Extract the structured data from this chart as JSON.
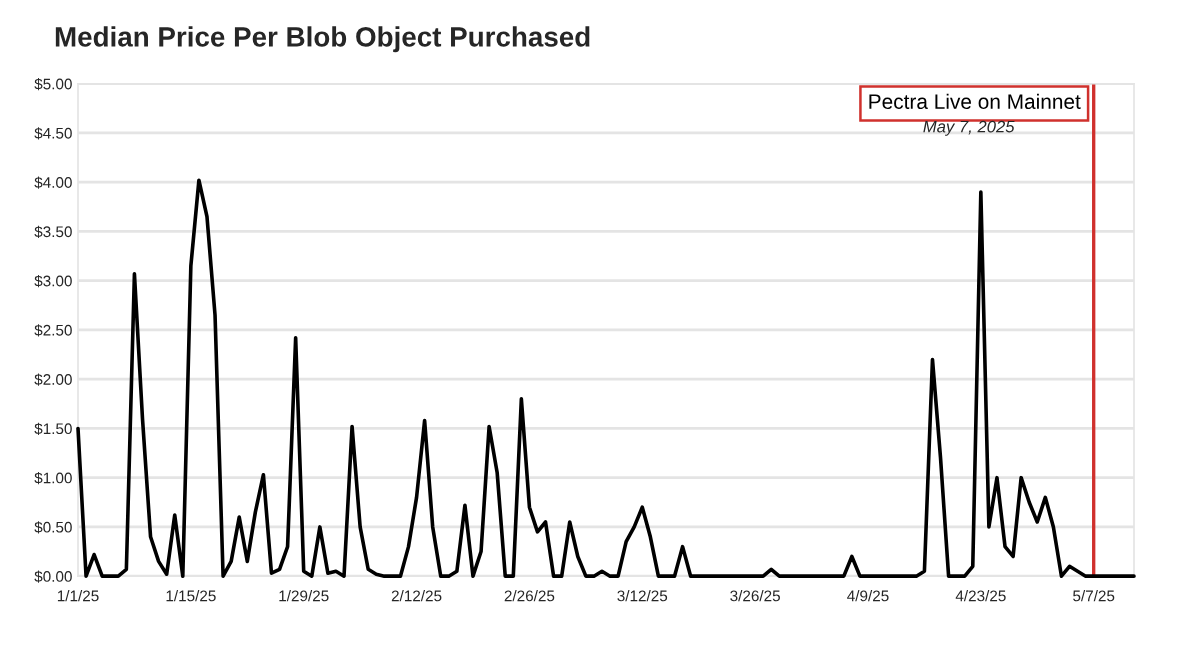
{
  "chart_data": {
    "type": "line",
    "title": "Median Price Per Blob Object Purchased",
    "x": [
      "2025-01-01",
      "2025-01-02",
      "2025-01-03",
      "2025-01-04",
      "2025-01-06",
      "2025-01-07",
      "2025-01-08",
      "2025-01-09",
      "2025-01-10",
      "2025-01-11",
      "2025-01-12",
      "2025-01-13",
      "2025-01-14",
      "2025-01-15",
      "2025-01-16",
      "2025-01-17",
      "2025-01-18",
      "2025-01-19",
      "2025-01-20",
      "2025-01-21",
      "2025-01-22",
      "2025-01-23",
      "2025-01-24",
      "2025-01-25",
      "2025-01-26",
      "2025-01-27",
      "2025-01-28",
      "2025-01-29",
      "2025-01-30",
      "2025-01-31",
      "2025-02-01",
      "2025-02-02",
      "2025-02-03",
      "2025-02-04",
      "2025-02-05",
      "2025-02-06",
      "2025-02-07",
      "2025-02-08",
      "2025-02-10",
      "2025-02-11",
      "2025-02-12",
      "2025-02-13",
      "2025-02-14",
      "2025-02-15",
      "2025-02-16",
      "2025-02-17",
      "2025-02-18",
      "2025-02-19",
      "2025-02-20",
      "2025-02-21",
      "2025-02-22",
      "2025-02-23",
      "2025-02-24",
      "2025-02-25",
      "2025-02-26",
      "2025-02-27",
      "2025-02-28",
      "2025-03-01",
      "2025-03-02",
      "2025-03-03",
      "2025-03-04",
      "2025-03-05",
      "2025-03-06",
      "2025-03-07",
      "2025-03-08",
      "2025-03-09",
      "2025-03-10",
      "2025-03-11",
      "2025-03-12",
      "2025-03-13",
      "2025-03-14",
      "2025-03-16",
      "2025-03-17",
      "2025-03-18",
      "2025-03-27",
      "2025-03-28",
      "2025-03-29",
      "2025-04-06",
      "2025-04-07",
      "2025-04-08",
      "2025-04-15",
      "2025-04-16",
      "2025-04-17",
      "2025-04-18",
      "2025-04-19",
      "2025-04-21",
      "2025-04-22",
      "2025-04-23",
      "2025-04-24",
      "2025-04-25",
      "2025-04-26",
      "2025-04-27",
      "2025-04-28",
      "2025-04-29",
      "2025-04-30",
      "2025-05-01",
      "2025-05-02",
      "2025-05-03",
      "2025-05-04",
      "2025-05-05",
      "2025-05-06",
      "2025-05-12"
    ],
    "series": [
      {
        "color": "#000000",
        "values": [
          1.5,
          0,
          0.22,
          0,
          0,
          0.07,
          3.07,
          1.6,
          0.4,
          0.15,
          0.02,
          0.62,
          0,
          3.15,
          4.02,
          3.65,
          2.65,
          0,
          0.15,
          0.6,
          0.15,
          0.65,
          1.03,
          0.03,
          0.07,
          0.3,
          2.42,
          0.05,
          0,
          0.5,
          0.03,
          0.05,
          0,
          1.52,
          0.5,
          0.07,
          0.02,
          0,
          0,
          0.3,
          0.8,
          1.58,
          0.5,
          0,
          0,
          0.05,
          0.72,
          0,
          0.25,
          1.52,
          1.05,
          0,
          0,
          1.8,
          0.7,
          0.45,
          0.55,
          0,
          0,
          0.55,
          0.2,
          0,
          0,
          0.05,
          0,
          0,
          0.35,
          0.5,
          0.7,
          0.4,
          0,
          0,
          0.3,
          0,
          0,
          0.07,
          0,
          0,
          0.2,
          0,
          0,
          0.05,
          2.2,
          1.2,
          0,
          0,
          0.1,
          3.9,
          0.5,
          1.0,
          0.3,
          0.2,
          1.0,
          0.75,
          0.55,
          0.8,
          0.5,
          0,
          0.1,
          0.05,
          0,
          0
        ]
      }
    ],
    "xlim": [
      "2025-01-01",
      "2025-05-12"
    ],
    "xticks": [
      {
        "value": "2025-01-01",
        "label": "1/1/25"
      },
      {
        "value": "2025-01-15",
        "label": "1/15/25"
      },
      {
        "value": "2025-01-29",
        "label": "1/29/25"
      },
      {
        "value": "2025-02-12",
        "label": "2/12/25"
      },
      {
        "value": "2025-02-26",
        "label": "2/26/25"
      },
      {
        "value": "2025-03-12",
        "label": "3/12/25"
      },
      {
        "value": "2025-03-26",
        "label": "3/26/25"
      },
      {
        "value": "2025-04-09",
        "label": "4/9/25"
      },
      {
        "value": "2025-04-23",
        "label": "4/23/25"
      },
      {
        "value": "2025-05-07",
        "label": "5/7/25"
      }
    ],
    "ylim": [
      0,
      5
    ],
    "yticks": [
      {
        "value": 0,
        "label": "$0.00"
      },
      {
        "value": 0.5,
        "label": "$0.50"
      },
      {
        "value": 1,
        "label": "$1.00"
      },
      {
        "value": 1.5,
        "label": "$1.50"
      },
      {
        "value": 2,
        "label": "$2.00"
      },
      {
        "value": 2.5,
        "label": "$2.50"
      },
      {
        "value": 3,
        "label": "$3.00"
      },
      {
        "value": 3.5,
        "label": "$3.50"
      },
      {
        "value": 4,
        "label": "$4.00"
      },
      {
        "value": 4.5,
        "label": "$4.50"
      },
      {
        "value": 5,
        "label": "$5.00"
      }
    ],
    "ref_lines": [
      {
        "axis": "x",
        "value": "2025-05-07",
        "label": "Pectra Live on Mainnet",
        "color": "#d0312d"
      }
    ],
    "annotations": [
      "May 7, 2025"
    ],
    "grid": "y",
    "legend": false,
    "marker": "none",
    "line_style": "solid"
  }
}
